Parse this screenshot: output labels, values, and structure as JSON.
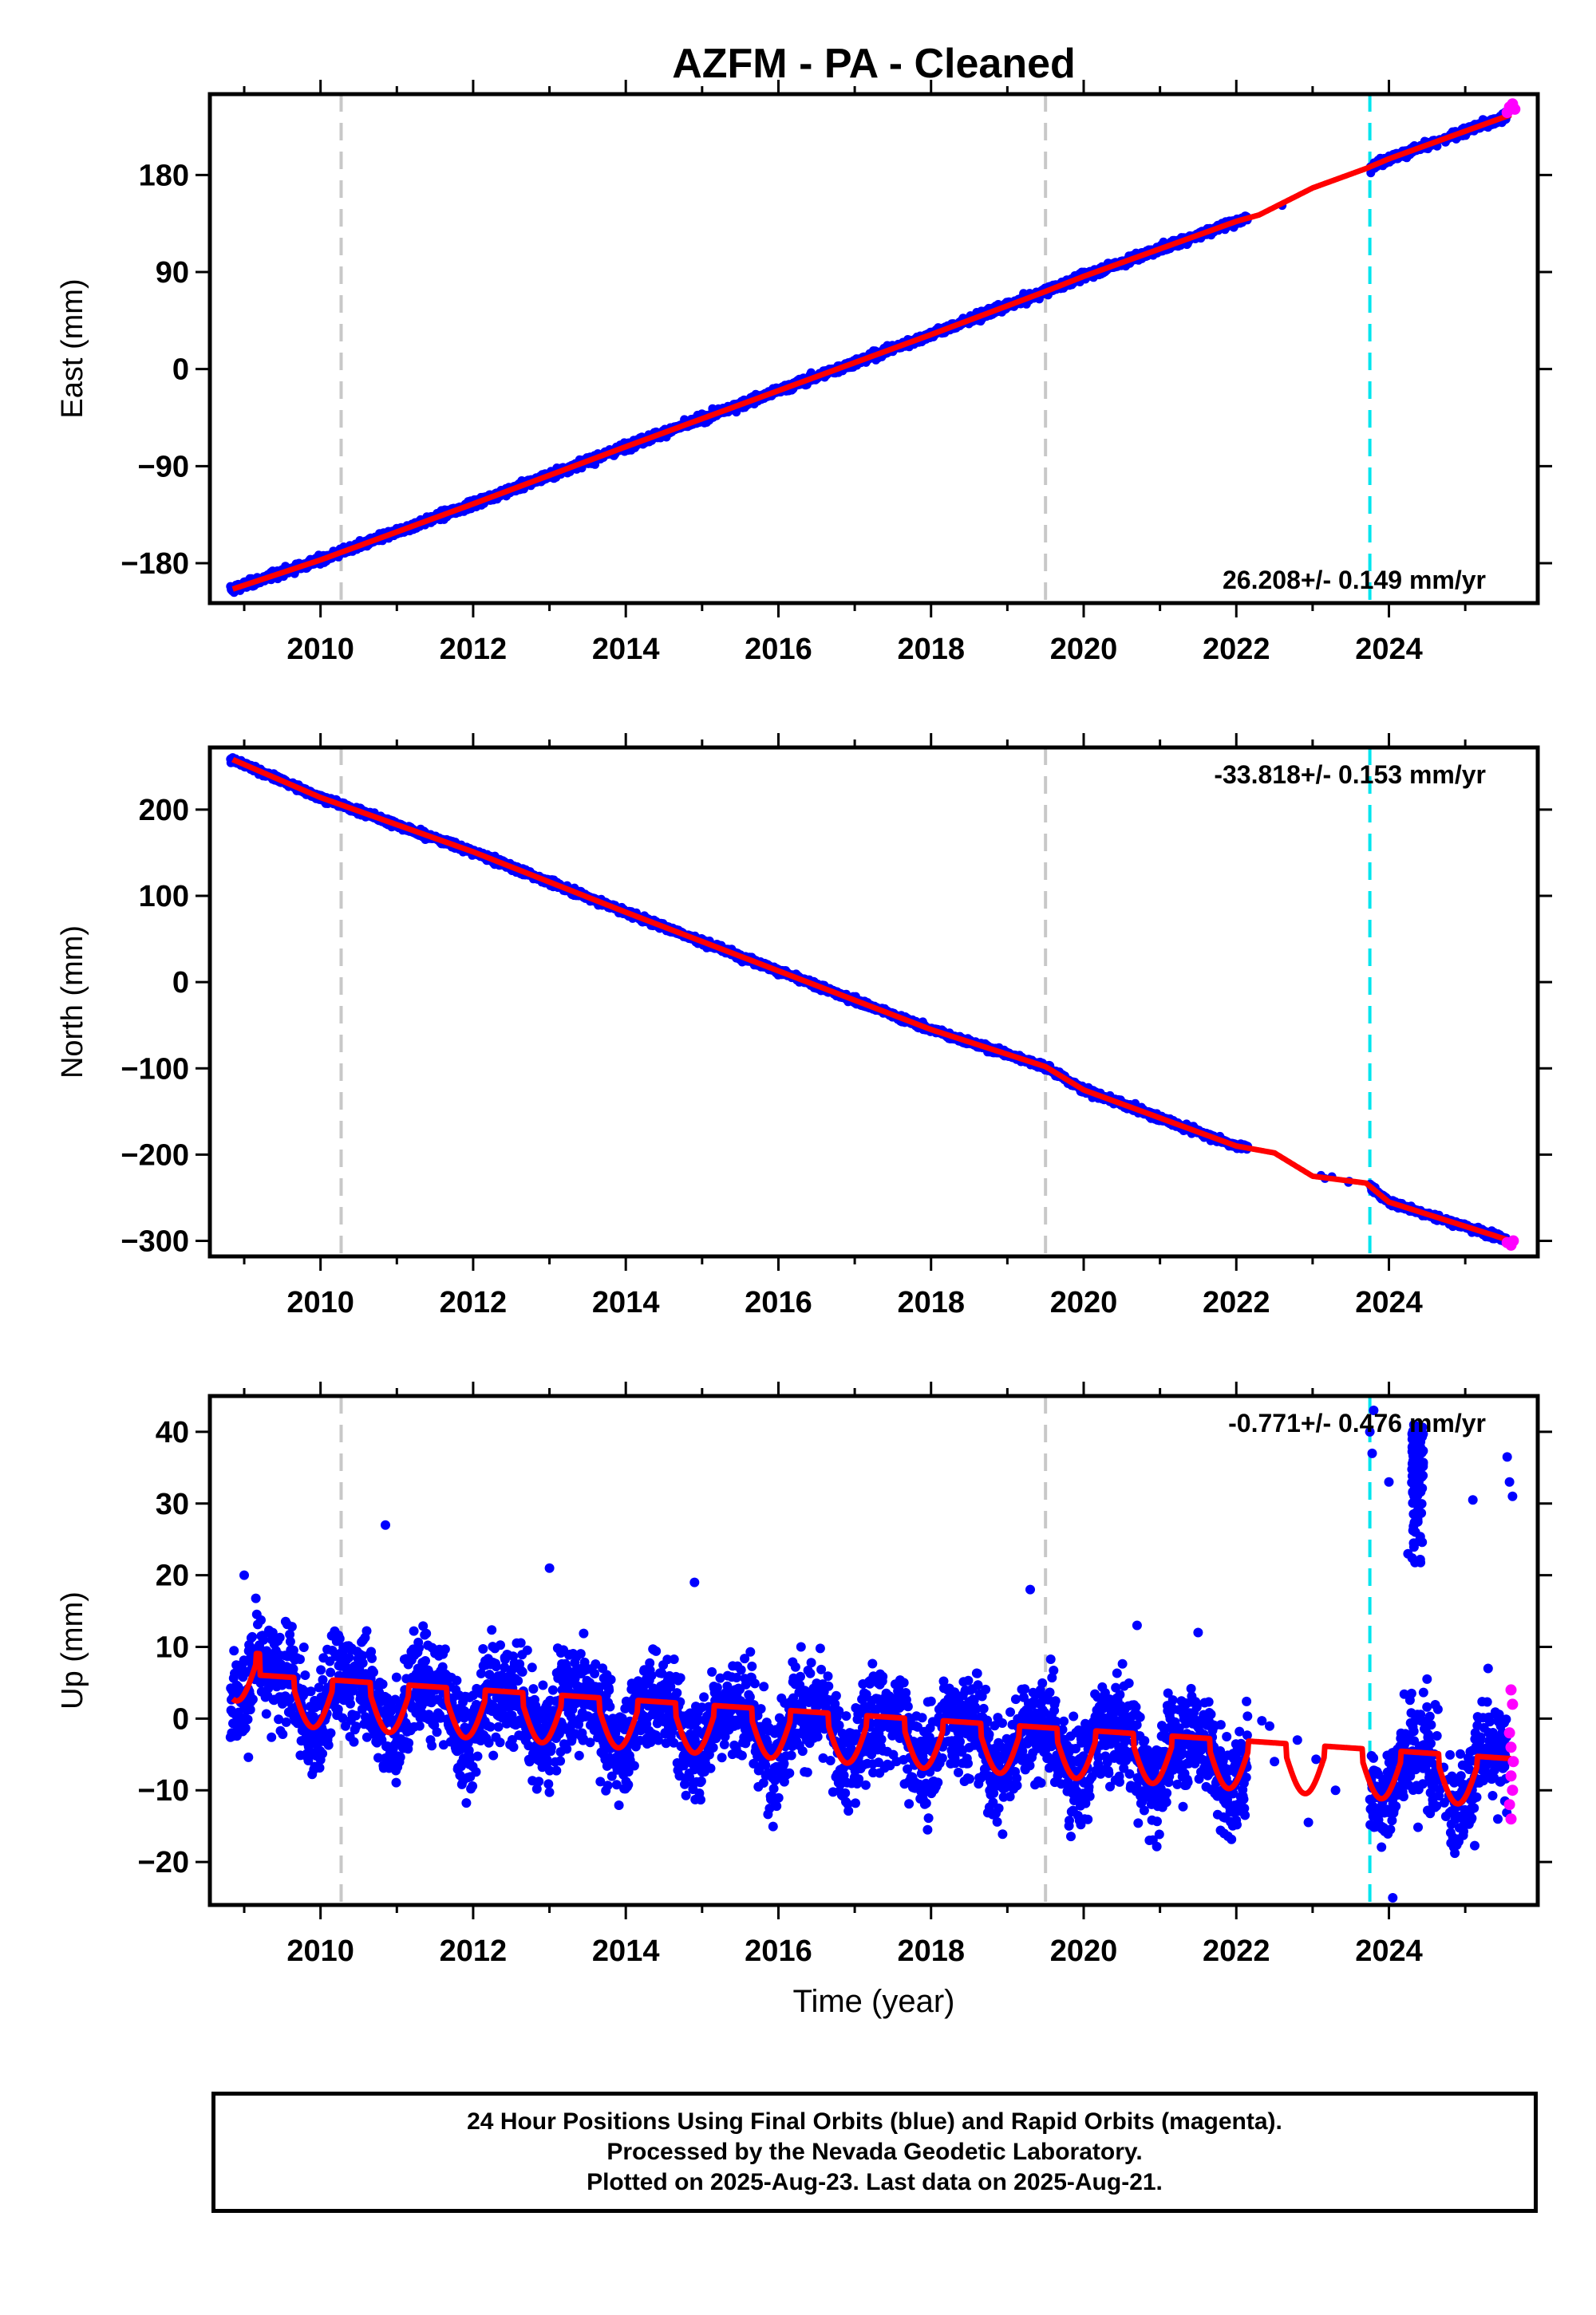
{
  "title": "AZFM  - PA - Cleaned",
  "xlabel": "Time (year)",
  "colors": {
    "final": "#0000ff",
    "rapid": "#ff00ff",
    "model": "#ff0000",
    "gray_marker": "#c8c8c8",
    "cyan_marker": "#00e5ee"
  },
  "chart_data": [
    {
      "type": "scatter",
      "component": "East",
      "ylabel": "East (mm)",
      "xlim": [
        2008.55,
        2025.95
      ],
      "ylim": [
        -217,
        255
      ],
      "yticks": [
        -180,
        -90,
        0,
        90,
        180
      ],
      "xticks": [
        2010,
        2012,
        2014,
        2016,
        2018,
        2020,
        2022,
        2024
      ],
      "rate_label": "26.208+/- 0.149 mm/yr",
      "rate_position": "bottom-right",
      "model_points": [
        [
          2008.85,
          -204
        ],
        [
          2010,
          -177
        ],
        [
          2012,
          -125
        ],
        [
          2014,
          -72
        ],
        [
          2016,
          -20
        ],
        [
          2018,
          32
        ],
        [
          2019.5,
          72
        ],
        [
          2020,
          86
        ],
        [
          2022,
          137
        ],
        [
          2022.3,
          143
        ],
        [
          2023,
          168
        ],
        [
          2023.7,
          186
        ],
        [
          2024,
          195
        ],
        [
          2025.6,
          236
        ]
      ],
      "data_gap": [
        2022.15,
        2023.75
      ],
      "rapid_points": [
        [
          2025.55,
          238
        ],
        [
          2025.58,
          243
        ],
        [
          2025.62,
          246
        ],
        [
          2025.65,
          241
        ]
      ]
    },
    {
      "type": "scatter",
      "component": "North",
      "ylabel": "North (mm)",
      "xlim": [
        2008.55,
        2025.95
      ],
      "ylim": [
        -318,
        272
      ],
      "yticks": [
        -300,
        -200,
        -100,
        0,
        100,
        200
      ],
      "xticks": [
        2010,
        2012,
        2014,
        2016,
        2018,
        2020,
        2022,
        2024
      ],
      "rate_label": "-33.818+/- 0.153 mm/yr",
      "rate_position": "top-right",
      "model_points": [
        [
          2008.85,
          258
        ],
        [
          2010,
          214
        ],
        [
          2012,
          151
        ],
        [
          2014,
          81
        ],
        [
          2016,
          13
        ],
        [
          2018,
          -55
        ],
        [
          2019.5,
          -98
        ],
        [
          2020,
          -125
        ],
        [
          2022,
          -190
        ],
        [
          2022.5,
          -198
        ],
        [
          2023,
          -225
        ],
        [
          2023.7,
          -233
        ],
        [
          2024,
          -255
        ],
        [
          2025.6,
          -300
        ]
      ],
      "data_gap": [
        2022.15,
        2023.75
      ],
      "rapid_points": [
        [
          2025.55,
          -302
        ],
        [
          2025.6,
          -305
        ],
        [
          2025.63,
          -300
        ]
      ]
    },
    {
      "type": "scatter",
      "component": "Up",
      "ylabel": "Up (mm)",
      "xlim": [
        2008.55,
        2025.95
      ],
      "ylim": [
        -26,
        45
      ],
      "yticks": [
        -20,
        -10,
        0,
        10,
        20,
        30,
        40
      ],
      "xticks": [
        2010,
        2012,
        2014,
        2016,
        2018,
        2020,
        2022,
        2024
      ],
      "rate_label": "-0.771+/- 0.476 mm/yr",
      "rate_position": "top-right",
      "data_gap": [
        2022.15,
        2023.75
      ],
      "outlier_cluster": [
        2024.3,
        2024.45,
        21,
        41
      ],
      "rapid_points": [
        [
          2025.6,
          4
        ],
        [
          2025.62,
          2
        ],
        [
          2025.58,
          -2
        ],
        [
          2025.6,
          -4
        ],
        [
          2025.63,
          -6
        ],
        [
          2025.6,
          -8
        ],
        [
          2025.62,
          -10
        ],
        [
          2025.58,
          -12
        ],
        [
          2025.6,
          -14
        ]
      ]
    }
  ],
  "event_markers": [
    {
      "year": 2010.27,
      "style": "dashed",
      "color": "gray"
    },
    {
      "year": 2019.5,
      "style": "dashed",
      "color": "gray"
    },
    {
      "year": 2023.75,
      "style": "dashed",
      "color": "cyan"
    }
  ],
  "notes": [
    "24 Hour Positions Using Final Orbits (blue) and Rapid Orbits (magenta).",
    "Processed by the Nevada Geodetic Laboratory.",
    "Plotted on 2025-Aug-23. Last data on 2025-Aug-21."
  ]
}
